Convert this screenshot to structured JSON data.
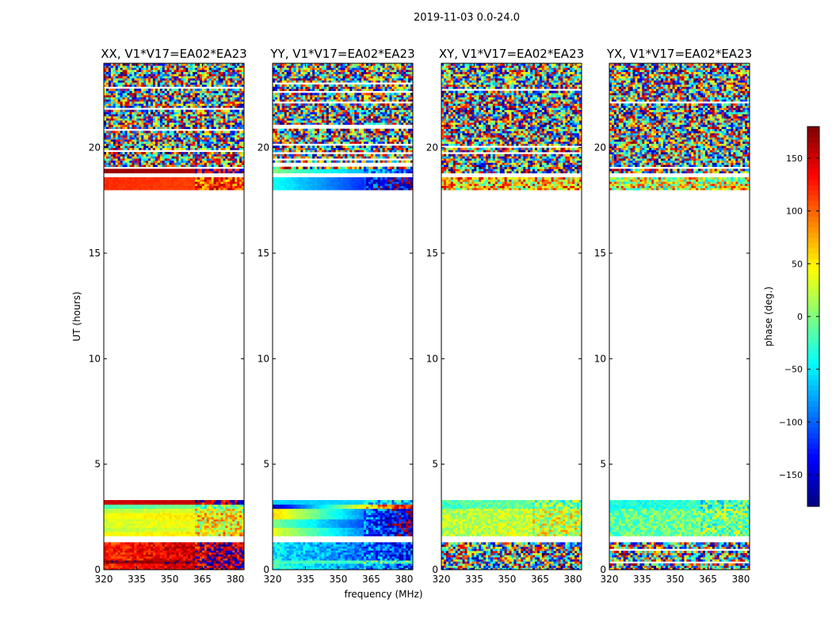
{
  "figure_title": "2019-11-03 0.0-24.0",
  "colormap": [
    "#00007f",
    "#0000ff",
    "#007fff",
    "#00ffff",
    "#7fff7f",
    "#ffff00",
    "#ff7f00",
    "#ff0000",
    "#7f0000"
  ],
  "colors": {
    "background": "#ffffff",
    "axes": "#000000"
  },
  "chart_data": [
    {
      "type": "heatmap",
      "title": "XX, V1*V17=EA02*EA23",
      "xlabel": "",
      "ylabel": "UT (hours)",
      "xlim": [
        320,
        384
      ],
      "ylim": [
        0,
        24
      ],
      "x_ticks": [
        "320",
        "335",
        "350",
        "365",
        "380"
      ],
      "y_ticks": [
        "0",
        "5",
        "10",
        "15",
        "20"
      ],
      "bands": [
        {
          "y": [
            0.0,
            0.3
          ],
          "phase": [
            120,
            170
          ],
          "noise": 50
        },
        {
          "y": [
            0.3,
            0.45
          ],
          "phase": [
            170,
            170
          ],
          "noise": 30
        },
        {
          "y": [
            0.45,
            1.3
          ],
          "phase": [
            120,
            170
          ],
          "noise": 60
        },
        {
          "y": [
            1.6,
            1.8
          ],
          "phase": [
            40,
            60
          ],
          "noise": 20
        },
        {
          "y": [
            1.8,
            2.0
          ],
          "phase": [
            20,
            40
          ],
          "noise": 20
        },
        {
          "y": [
            2.0,
            2.4
          ],
          "phase": [
            30,
            50
          ],
          "noise": 25
        },
        {
          "y": [
            2.4,
            2.7
          ],
          "phase": [
            40,
            60
          ],
          "noise": 20
        },
        {
          "y": [
            2.7,
            2.9
          ],
          "phase": [
            20,
            40
          ],
          "noise": 20
        },
        {
          "y": [
            2.9,
            3.1
          ],
          "phase": [
            -20,
            10
          ],
          "noise": 15
        },
        {
          "y": [
            3.1,
            3.3
          ],
          "phase": [
            150,
            160
          ],
          "noise": 10
        },
        {
          "y": [
            18.0,
            18.6
          ],
          "phase": [
            120,
            110
          ],
          "noise": 10
        },
        {
          "y": [
            18.8,
            19.0
          ],
          "phase": [
            170,
            160
          ],
          "noise": 10
        },
        {
          "y": [
            19.0,
            24.0
          ],
          "phase": [
            0,
            0
          ],
          "noise": 360
        }
      ]
    },
    {
      "type": "heatmap",
      "title": "YY, V1*V17=EA02*EA23",
      "xlabel": "frequency (MHz)",
      "ylabel": "",
      "xlim": [
        320,
        384
      ],
      "ylim": [
        0,
        24
      ],
      "x_ticks": [
        "320",
        "335",
        "350",
        "365",
        "380"
      ],
      "y_ticks": [
        "0",
        "5",
        "10",
        "15",
        "20"
      ],
      "bands": [
        {
          "y": [
            0.0,
            0.3
          ],
          "phase": [
            -30,
            -110
          ],
          "noise": 50
        },
        {
          "y": [
            0.3,
            0.45
          ],
          "phase": [
            -20,
            -20
          ],
          "noise": 30
        },
        {
          "y": [
            0.45,
            1.3
          ],
          "phase": [
            -50,
            -120
          ],
          "noise": 60
        },
        {
          "y": [
            1.6,
            2.0
          ],
          "phase": [
            40,
            -160
          ],
          "noise": 15
        },
        {
          "y": [
            2.0,
            2.4
          ],
          "phase": [
            0,
            -170
          ],
          "noise": 15
        },
        {
          "y": [
            2.4,
            2.9
          ],
          "phase": [
            60,
            -160
          ],
          "noise": 15
        },
        {
          "y": [
            2.9,
            3.1
          ],
          "phase": [
            -160,
            160
          ],
          "noise": 10
        },
        {
          "y": [
            3.1,
            3.3
          ],
          "phase": [
            -60,
            -60
          ],
          "noise": 10
        },
        {
          "y": [
            18.0,
            18.6
          ],
          "phase": [
            -40,
            -160
          ],
          "noise": 10
        },
        {
          "y": [
            18.8,
            19.0
          ],
          "phase": [
            0,
            -110
          ],
          "noise": 10
        },
        {
          "y": [
            19.0,
            24.0
          ],
          "phase": [
            0,
            0
          ],
          "noise": 360
        }
      ]
    },
    {
      "type": "heatmap",
      "title": "XY, V1*V17=EA02*EA23",
      "xlabel": "",
      "ylabel": "",
      "xlim": [
        320,
        384
      ],
      "ylim": [
        0,
        24
      ],
      "x_ticks": [
        "320",
        "335",
        "350",
        "365",
        "380"
      ],
      "y_ticks": [
        "0",
        "5",
        "10",
        "15",
        "20"
      ],
      "bands": [
        {
          "y": [
            0.0,
            1.3
          ],
          "phase": [
            0,
            0
          ],
          "noise": 360
        },
        {
          "y": [
            1.6,
            2.9
          ],
          "phase": [
            20,
            30
          ],
          "noise": 60
        },
        {
          "y": [
            2.9,
            3.3
          ],
          "phase": [
            -20,
            0
          ],
          "noise": 40
        },
        {
          "y": [
            18.0,
            18.6
          ],
          "phase": [
            60,
            60
          ],
          "noise": 200
        },
        {
          "y": [
            18.8,
            24.0
          ],
          "phase": [
            0,
            0
          ],
          "noise": 360
        }
      ]
    },
    {
      "type": "heatmap",
      "title": "YX, V1*V17=EA02*EA23",
      "xlabel": "",
      "ylabel": "",
      "xlim": [
        320,
        384
      ],
      "ylim": [
        0,
        24
      ],
      "x_ticks": [
        "320",
        "335",
        "350",
        "365",
        "380"
      ],
      "y_ticks": [
        "0",
        "5",
        "10",
        "15",
        "20"
      ],
      "bands": [
        {
          "y": [
            0.0,
            1.3
          ],
          "phase": [
            0,
            0
          ],
          "noise": 360
        },
        {
          "y": [
            1.6,
            2.9
          ],
          "phase": [
            -10,
            0
          ],
          "noise": 70
        },
        {
          "y": [
            2.9,
            3.3
          ],
          "phase": [
            -40,
            -20
          ],
          "noise": 40
        },
        {
          "y": [
            18.0,
            18.6
          ],
          "phase": [
            40,
            40
          ],
          "noise": 200
        },
        {
          "y": [
            18.8,
            24.0
          ],
          "phase": [
            0,
            0
          ],
          "noise": 360
        }
      ]
    }
  ],
  "colorbar": {
    "label": "phase (deg.)",
    "range": [
      -180,
      180
    ],
    "ticks": [
      "150",
      "100",
      "50",
      "0",
      "−50",
      "−100",
      "−150"
    ],
    "tick_values": [
      150,
      100,
      50,
      0,
      -50,
      -100,
      -150
    ]
  }
}
